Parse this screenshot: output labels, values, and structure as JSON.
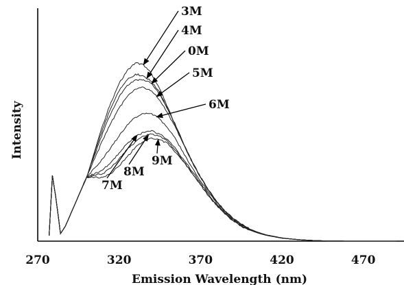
{
  "chart_data": {
    "type": "line",
    "title": "",
    "xlabel": "Emission Wavelength (nm)",
    "ylabel": "Intensity",
    "xlim": [
      270,
      495
    ],
    "ylim": [
      0,
      100
    ],
    "xticks": [
      "270",
      "320",
      "370",
      "420",
      "470"
    ],
    "xtick_values": [
      270,
      320,
      370,
      420,
      470
    ],
    "grid": false,
    "x": [
      277,
      279,
      281,
      284,
      287,
      290,
      295,
      300,
      305,
      310,
      315,
      320,
      325,
      330,
      335,
      340,
      345,
      350,
      355,
      360,
      365,
      370,
      375,
      380,
      385,
      390,
      395,
      400,
      405,
      410,
      420,
      430,
      440,
      450,
      460,
      470,
      480,
      490
    ],
    "series": [
      {
        "name": "3M",
        "values": [
          3,
          35,
          24,
          4,
          8,
          14,
          24,
          34,
          48,
          62,
          74,
          84,
          91,
          95,
          94,
          89,
          81,
          71,
          61,
          51,
          42,
          34,
          27,
          21,
          16,
          12,
          9,
          6.5,
          4.8,
          3.4,
          1.7,
          0.8,
          0.3,
          0.1,
          0,
          0,
          0,
          0
        ]
      },
      {
        "name": "4M",
        "values": [
          3,
          35,
          24,
          4,
          8,
          14,
          24,
          34,
          47,
          60,
          71,
          80,
          86,
          89,
          88,
          85,
          79,
          70,
          61,
          51,
          42,
          34,
          27,
          21,
          16,
          12,
          9,
          6.5,
          4.8,
          3.4,
          1.7,
          0.8,
          0.3,
          0.1,
          0,
          0,
          0,
          0
        ]
      },
      {
        "name": "0M",
        "values": [
          3,
          35,
          24,
          4,
          8,
          14,
          24,
          34,
          46,
          58,
          68,
          77,
          83,
          86,
          86,
          84,
          78,
          70,
          61,
          51,
          42,
          34,
          27,
          21,
          16,
          12,
          9,
          6.5,
          4.8,
          3.4,
          1.7,
          0.8,
          0.3,
          0.1,
          0,
          0,
          0,
          0
        ]
      },
      {
        "name": "5M",
        "values": [
          3,
          35,
          24,
          4,
          8,
          14,
          24,
          34,
          44,
          54,
          63,
          71,
          77,
          81,
          82,
          80,
          75,
          68,
          60,
          51,
          42,
          34,
          27,
          21,
          16,
          12,
          9,
          6.5,
          4.8,
          3.4,
          1.7,
          0.8,
          0.3,
          0.1,
          0,
          0,
          0,
          0
        ]
      },
      {
        "name": "6M",
        "values": [
          3,
          35,
          24,
          4,
          8,
          14,
          24,
          34,
          39,
          44,
          50,
          56,
          62,
          66,
          68,
          68,
          65,
          60,
          54,
          46,
          39,
          32,
          26,
          20,
          15,
          11,
          8.5,
          6.3,
          4.6,
          3.3,
          1.6,
          0.8,
          0.3,
          0.1,
          0,
          0,
          0,
          0
        ]
      },
      {
        "name": "7M",
        "values": [
          3,
          35,
          24,
          4,
          8,
          14,
          24,
          34,
          36,
          38,
          42,
          47,
          52,
          56,
          58,
          59,
          57,
          54,
          49,
          43,
          37,
          31,
          25,
          19,
          15,
          11,
          8.2,
          6.1,
          4.5,
          3.2,
          1.6,
          0.8,
          0.3,
          0.1,
          0,
          0,
          0,
          0
        ]
      },
      {
        "name": "8M",
        "values": [
          3,
          35,
          24,
          4,
          8,
          14,
          24,
          34,
          35,
          36,
          39,
          44,
          49,
          53,
          56,
          57,
          56,
          53,
          48,
          42,
          36,
          30,
          24,
          19,
          14.5,
          11,
          8.1,
          6,
          4.4,
          3.2,
          1.6,
          0.8,
          0.3,
          0.1,
          0,
          0,
          0,
          0
        ]
      },
      {
        "name": "9M",
        "values": [
          3,
          35,
          24,
          4,
          8,
          14,
          24,
          34,
          34,
          34,
          36,
          40,
          45,
          50,
          53,
          55,
          54,
          52,
          47,
          42,
          36,
          30,
          24,
          19,
          14.5,
          11,
          8,
          6,
          4.4,
          3.2,
          1.6,
          0.8,
          0.3,
          0.1,
          0,
          0,
          0,
          0
        ]
      }
    ],
    "annotations": [
      {
        "text": "3M",
        "series": "3M",
        "x": 335
      },
      {
        "text": "4M",
        "series": "4M",
        "x": 337
      },
      {
        "text": "0M",
        "series": "0M",
        "x": 340
      },
      {
        "text": "5M",
        "series": "5M",
        "x": 343
      },
      {
        "text": "6M",
        "series": "6M",
        "x": 343
      },
      {
        "text": "7M",
        "series": "7M",
        "x": 331
      },
      {
        "text": "8M",
        "series": "8M",
        "x": 338
      },
      {
        "text": "9M",
        "series": "9M",
        "x": 344
      }
    ]
  }
}
